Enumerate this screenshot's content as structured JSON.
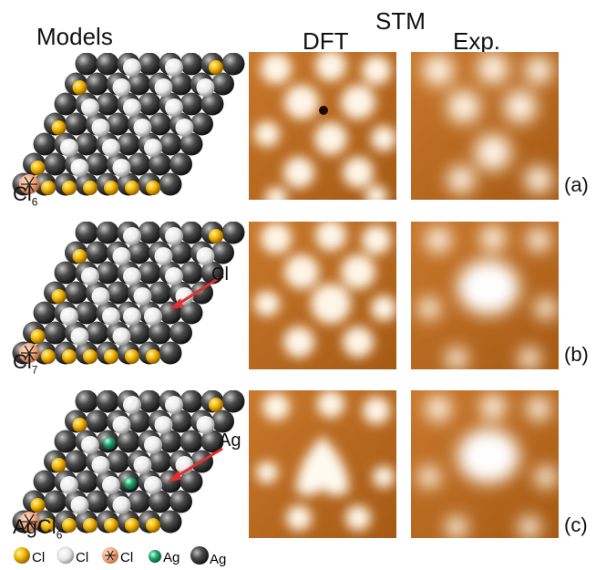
{
  "headers": {
    "models": "Models",
    "stm": "STM",
    "dft": "DFT",
    "exp": "Exp."
  },
  "rows": [
    {
      "tag": "(a)",
      "model_main": "Cl",
      "model_sub": "6",
      "callout": ""
    },
    {
      "tag": "(b)",
      "model_main": "Cl",
      "model_sub": "7",
      "callout": "Cl"
    },
    {
      "tag": "(c)",
      "model_main": "AgCl",
      "model_sub": "6",
      "callout": "Ag"
    }
  ],
  "legend": [
    {
      "label": "Cl",
      "icon": "yellow-sphere",
      "color": "#f2b400"
    },
    {
      "label": "Cl",
      "icon": "white-sphere",
      "color": "#f0f0f0"
    },
    {
      "label": "Cl",
      "icon": "orange-crossed-sphere",
      "color": "#f4a57a"
    },
    {
      "label": "Ag",
      "icon": "green-sphere",
      "color": "#1aa06a"
    },
    {
      "label": "Ag",
      "icon": "dark-sphere",
      "color": "#3a3a3a"
    }
  ],
  "colors": {
    "ag": "#3a3a3a",
    "cl_edge": "#f2b400",
    "cl_top": "#f0f0f0",
    "cl_marked": "#f4a57a",
    "ag_adatom": "#1aa06a",
    "arrow": "#e03030",
    "stm_dark": "#a55a14",
    "stm_light": "#fff6e8"
  }
}
